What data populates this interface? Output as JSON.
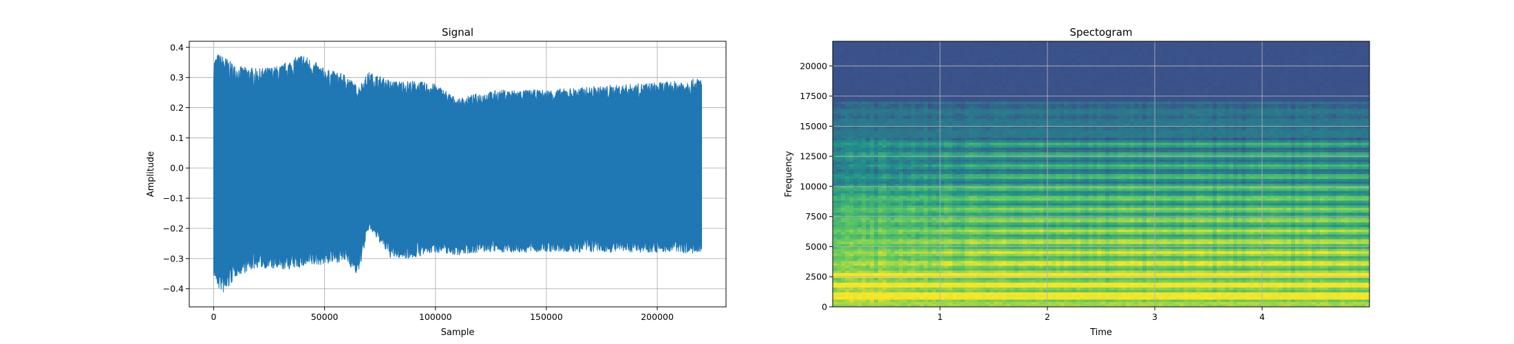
{
  "colors": {
    "signal": "#1f77b4",
    "grid": "#b0b0b0",
    "colormap": "viridis",
    "spectrogram_low": "#35608d",
    "spectrogram_high": "#fde725"
  },
  "chart_data": [
    {
      "type": "line",
      "title": "Signal",
      "xlabel": "Sample",
      "ylabel": "Amplitude",
      "grid": true,
      "xlim": [
        -11000,
        231000
      ],
      "ylim": [
        -0.46,
        0.42
      ],
      "x_ticks": [
        0,
        50000,
        100000,
        150000,
        200000
      ],
      "y_ticks": [
        -0.4,
        -0.3,
        -0.2,
        -0.1,
        0.0,
        0.1,
        0.2,
        0.3,
        0.4
      ],
      "x_tick_labels": [
        "0",
        "50000",
        "100000",
        "150000",
        "200000"
      ],
      "y_tick_labels": [
        "−0.4",
        "−0.3",
        "−0.2",
        "−0.1",
        "0.0",
        "0.1",
        "0.2",
        "0.3",
        "0.4"
      ],
      "series": [
        {
          "x": [
            0,
            2000,
            5000,
            10000,
            20000,
            30000,
            40000,
            50000,
            60000,
            65000,
            70000,
            80000,
            90000,
            100000,
            110000,
            120000,
            130000,
            150000,
            170000,
            190000,
            210000,
            220000
          ],
          "y_max": [
            0.36,
            0.38,
            0.37,
            0.34,
            0.33,
            0.34,
            0.38,
            0.33,
            0.31,
            0.27,
            0.32,
            0.29,
            0.29,
            0.28,
            0.23,
            0.25,
            0.26,
            0.26,
            0.27,
            0.28,
            0.29,
            0.3
          ],
          "y_min": [
            -0.36,
            -0.4,
            -0.42,
            -0.36,
            -0.33,
            -0.34,
            -0.33,
            -0.32,
            -0.31,
            -0.36,
            -0.2,
            -0.3,
            -0.3,
            -0.28,
            -0.29,
            -0.28,
            -0.28,
            -0.28,
            -0.28,
            -0.28,
            -0.28,
            -0.29
          ]
        }
      ]
    },
    {
      "type": "heatmap",
      "title": "Spectogram",
      "xlabel": "Time",
      "ylabel": "Frequency",
      "grid": true,
      "xlim": [
        0.0,
        5.0
      ],
      "ylim": [
        0,
        22050
      ],
      "x_ticks": [
        1,
        2,
        3,
        4
      ],
      "y_ticks": [
        0,
        2500,
        5000,
        7500,
        10000,
        12500,
        15000,
        17500,
        20000
      ],
      "x_tick_labels": [
        "1",
        "2",
        "3",
        "4"
      ],
      "y_tick_labels": [
        "0",
        "2500",
        "5000",
        "7500",
        "10000",
        "12500",
        "15000",
        "17500",
        "20000"
      ],
      "harmonic_spacing_hz": 900,
      "bright_bands_hz": [
        900,
        1800,
        2700
      ]
    }
  ]
}
